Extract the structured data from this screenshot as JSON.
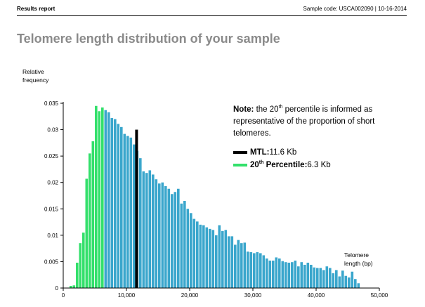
{
  "header": {
    "report_label": "Results report",
    "sample_prefix": "Sample code: ",
    "sample_code": "USCA002090",
    "separator": " | ",
    "date": "10-16-2014"
  },
  "page_title": "Telomere length distribution of your sample",
  "note": {
    "bold": "Note:",
    "text_before": " the 20",
    "sup": "th",
    "text_after": " percentile is informed as representative of the proportion of short telomeres."
  },
  "legend": {
    "mtl": {
      "label": "MTL:",
      "value": " 11.6 Kb",
      "color": "#000000"
    },
    "p20": {
      "label_before": "20",
      "sup": "th",
      "label_after": " Percentile:",
      "value": " 6.3 Kb",
      "color": "#33e06b"
    }
  },
  "axis_labels": {
    "y_line1": "Relative",
    "y_line2": "frequency",
    "x_line1": "Telomere",
    "x_line2": "length (bp)"
  },
  "chart_data": {
    "type": "bar",
    "title": "Telomere length distribution of your sample",
    "xlabel": "Telomere length (bp)",
    "ylabel": "Relative frequency",
    "xlim": [
      0,
      50000
    ],
    "ylim": [
      0,
      0.035
    ],
    "xticks": [
      0,
      10000,
      20000,
      30000,
      40000,
      50000
    ],
    "xtick_labels": [
      "0",
      "10,000",
      "20,000",
      "30,000",
      "40,000",
      "50,000"
    ],
    "yticks": [
      0,
      0.005,
      0.01,
      0.015,
      0.02,
      0.025,
      0.03,
      0.035
    ],
    "ytick_labels": [
      "0",
      "0.005",
      "0.01",
      "0.015",
      "0.02",
      "0.025",
      "0.03",
      "0.035"
    ],
    "bin_start": 1000,
    "bin_width": 500,
    "percentile20_cutoff": 6300,
    "mtl": 11600,
    "mtl_line_height": 0.03,
    "colors": {
      "below_p20": "#33e06b",
      "above_p20": "#3aa6cc",
      "mtl_line": "#000000"
    },
    "values": [
      0.0004,
      0.0005,
      0.0048,
      0.0085,
      0.0105,
      0.0207,
      0.0255,
      0.0278,
      0.0345,
      0.0335,
      0.0342,
      0.0337,
      0.0333,
      0.0322,
      0.032,
      0.0311,
      0.0305,
      0.0292,
      0.0288,
      0.0285,
      0.0272,
      0.026,
      0.0246,
      0.0221,
      0.0218,
      0.0223,
      0.0215,
      0.0206,
      0.0198,
      0.02,
      0.0193,
      0.0188,
      0.0178,
      0.0182,
      0.0188,
      0.016,
      0.0165,
      0.015,
      0.0142,
      0.0131,
      0.0126,
      0.012,
      0.0119,
      0.0115,
      0.0112,
      0.011,
      0.01,
      0.0119,
      0.0108,
      0.011,
      0.0098,
      0.0098,
      0.0082,
      0.0091,
      0.0085,
      0.0086,
      0.0069,
      0.0068,
      0.0066,
      0.0068,
      0.0066,
      0.0062,
      0.0056,
      0.0052,
      0.0052,
      0.0058,
      0.0056,
      0.0051,
      0.0049,
      0.0048,
      0.0049,
      0.0052,
      0.0041,
      0.0049,
      0.0044,
      0.0048,
      0.0044,
      0.0039,
      0.0038,
      0.0038,
      0.0034,
      0.0041,
      0.0038,
      0.0028,
      0.0034,
      0.0022,
      0.0033,
      0.0023,
      0.002,
      0.0031,
      0.0017,
      0.0009
    ]
  }
}
